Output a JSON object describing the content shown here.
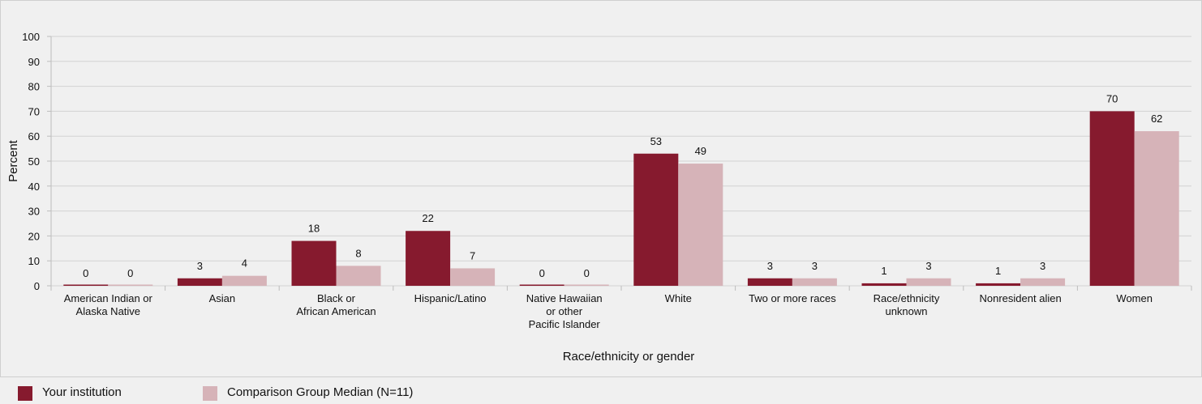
{
  "chart_data": {
    "type": "bar",
    "xlabel": "Race/ethnicity or gender",
    "ylabel": "Percent",
    "ylim": [
      0,
      100
    ],
    "yticks": [
      0,
      10,
      20,
      30,
      40,
      50,
      60,
      70,
      80,
      90,
      100
    ],
    "grid": true,
    "legend_position": "bottom",
    "categories": [
      [
        "American Indian or",
        "Alaska Native"
      ],
      [
        "Asian"
      ],
      [
        "Black or",
        "African American"
      ],
      [
        "Hispanic/Latino"
      ],
      [
        "Native Hawaiian",
        "or other",
        "Pacific Islander"
      ],
      [
        "White"
      ],
      [
        "Two or more races"
      ],
      [
        "Race/ethnicity",
        "unknown"
      ],
      [
        "Nonresident alien"
      ],
      [
        "Women"
      ]
    ],
    "series": [
      {
        "name": "Your institution",
        "color": "#861a2e",
        "values": [
          0,
          3,
          18,
          22,
          0,
          53,
          3,
          1,
          1,
          70
        ]
      },
      {
        "name": "Comparison Group Median (N=11)",
        "color": "#d6b3b8",
        "values": [
          0,
          4,
          8,
          7,
          0,
          49,
          3,
          3,
          3,
          62
        ]
      }
    ]
  }
}
